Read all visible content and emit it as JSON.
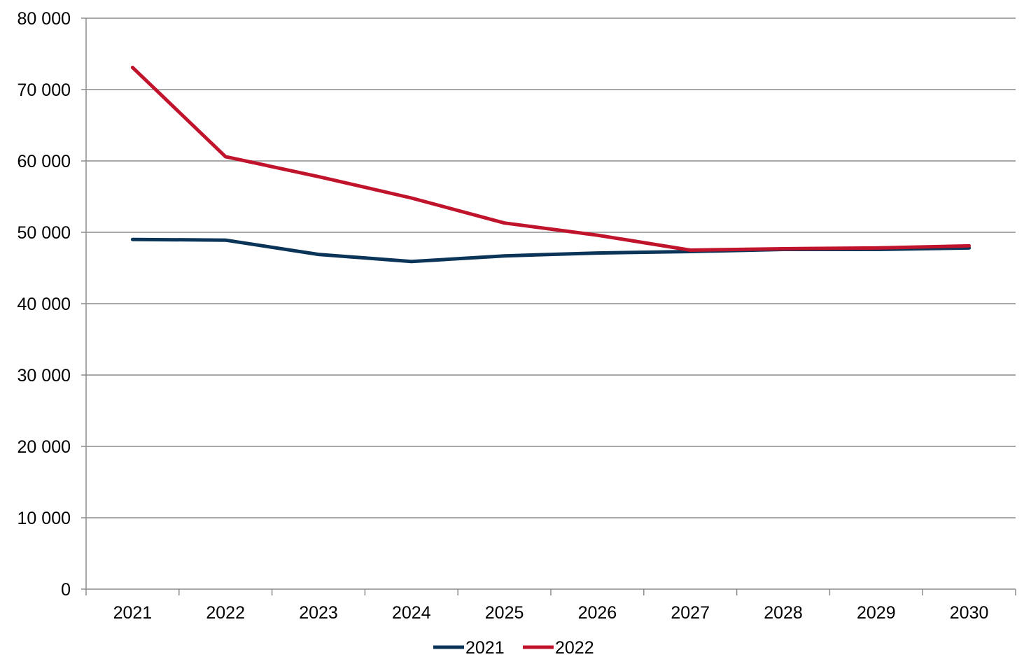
{
  "chart_data": {
    "type": "line",
    "title": "",
    "xlabel": "",
    "ylabel": "",
    "categories": [
      "2021",
      "2022",
      "2023",
      "2024",
      "2025",
      "2026",
      "2027",
      "2028",
      "2029",
      "2030"
    ],
    "ylim": [
      0,
      80000
    ],
    "yticks": [
      0,
      10000,
      20000,
      30000,
      40000,
      50000,
      60000,
      70000,
      80000
    ],
    "ytick_labels": [
      "0",
      "10 000",
      "20 000",
      "30 000",
      "40 000",
      "50 000",
      "60 000",
      "70 000",
      "80 000"
    ],
    "grid": true,
    "legend_position": "bottom",
    "series": [
      {
        "name": "2021",
        "color": "#0b3558",
        "values": [
          49000,
          48900,
          46900,
          45900,
          46700,
          47100,
          47300,
          47600,
          47600,
          47800
        ]
      },
      {
        "name": "2022",
        "color": "#c0142d",
        "values": [
          73100,
          60600,
          57800,
          54800,
          51300,
          49600,
          47500,
          47700,
          47800,
          48100
        ]
      }
    ]
  }
}
